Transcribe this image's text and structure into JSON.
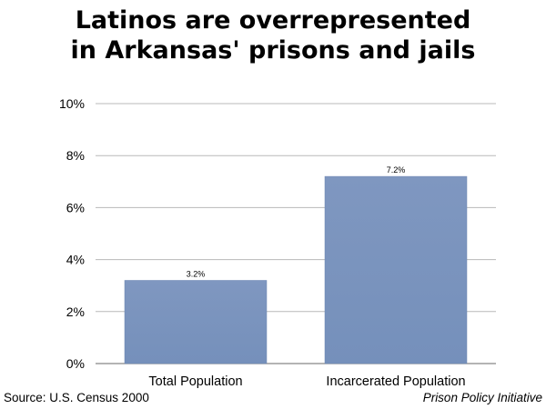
{
  "title_lines": [
    "Latinos are overrepresented",
    "in Arkansas' prisons and jails"
  ],
  "source": "Source: U.S. Census 2000",
  "credit": "Prison Policy Initiative",
  "chart_data": {
    "type": "bar",
    "title": "Latinos are overrepresented in Arkansas' prisons and jails",
    "categories": [
      "Total Population",
      "Incarcerated Population"
    ],
    "values": [
      3.2,
      7.2
    ],
    "data_labels": [
      "3.2%",
      "7.2%"
    ],
    "ylim": [
      0,
      10
    ],
    "yticks": [
      0,
      2,
      4,
      6,
      8,
      10
    ],
    "ytick_labels": [
      "0%",
      "2%",
      "4%",
      "6%",
      "8%",
      "10%"
    ],
    "grid": true,
    "bar_color": "#7b94bd",
    "legend": "none"
  }
}
